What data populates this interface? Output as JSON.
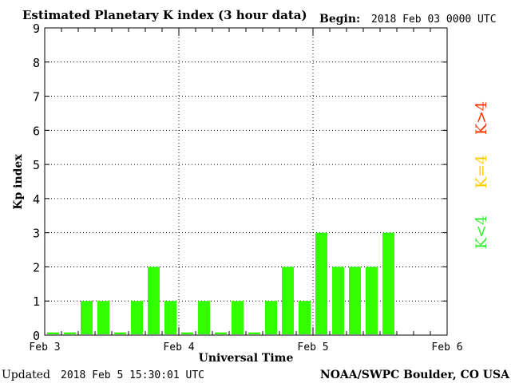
{
  "header": {
    "title": "Estimated Planetary K index (3 hour data)",
    "begin_label": "Begin:",
    "begin_value": "2018 Feb 03 0000 UTC"
  },
  "footer": {
    "updated_label": "Updated",
    "updated_value": "2018 Feb  5 15:30:01 UTC",
    "source": "NOAA/SWPC Boulder, CO USA"
  },
  "legend": [
    {
      "text": "K>4",
      "color": "#ff3300"
    },
    {
      "text": "K=4",
      "color": "#ffcc00"
    },
    {
      "text": "K<4",
      "color": "#33ee33"
    }
  ],
  "chart_data": {
    "type": "bar",
    "title": "Estimated Planetary K index (3 hour data)",
    "xlabel": "Universal Time",
    "ylabel": "Kp index",
    "ylim": [
      0,
      9
    ],
    "yticks": [
      "0",
      "1",
      "2",
      "3",
      "4",
      "5",
      "6",
      "7",
      "8",
      "9"
    ],
    "xticks": [
      "Feb 3",
      "Feb 4",
      "Feb 5",
      "Feb 6"
    ],
    "bar_color": "#33ff00",
    "grid": "dotted, major ticks",
    "x_range_intervals": 24,
    "values": [
      0,
      0,
      1,
      1,
      0,
      1,
      2,
      1,
      0,
      1,
      0,
      1,
      0,
      1,
      2,
      1,
      3,
      2,
      2,
      2,
      3
    ]
  }
}
